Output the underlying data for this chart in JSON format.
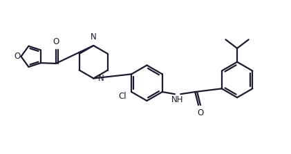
{
  "bg_color": "#ffffff",
  "line_color": "#1a1a2e",
  "lw": 1.6,
  "fs": 8.5,
  "figsize": [
    4.21,
    2.23
  ],
  "dpi": 100,
  "xlim": [
    0,
    10.5
  ],
  "ylim": [
    0,
    5.6
  ]
}
